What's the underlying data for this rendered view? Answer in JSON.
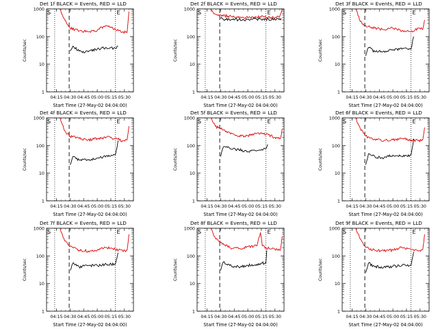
{
  "chart_data": [
    {
      "type": "line",
      "title": "Det 1f BLACK = Events, RED = LLD",
      "xlabel": "Start Time (27-May-02 04:04:00)",
      "ylabel": "Counts/sec",
      "x_tick_labels": [
        "04:15",
        "04:30",
        "04:45",
        "05:00",
        "05:15",
        "05:30"
      ],
      "y_tick_labels": [
        "1",
        "10",
        "100",
        "1000"
      ],
      "y_scale": "log",
      "ylim": [
        1,
        1000
      ],
      "corner_markers": [
        "S",
        "E"
      ],
      "vertical_lines": {
        "dotted": [
          "04:13",
          "05:20"
        ],
        "dashed": [
          "04:29"
        ]
      },
      "series": [
        {
          "color": "#000000",
          "x": [
            "04:30",
            "04:33",
            "04:40",
            "04:50",
            "05:00",
            "05:10",
            "05:20",
            "05:23"
          ],
          "y": [
            30,
            45,
            30,
            28,
            35,
            40,
            38,
            45
          ]
        },
        {
          "color": "#dd0000",
          "x": [
            "04:19",
            "04:24",
            "04:30",
            "04:40",
            "04:50",
            "05:00",
            "05:05",
            "05:12",
            "05:20",
            "05:28",
            "05:33",
            "05:35"
          ],
          "y": [
            1000,
            400,
            200,
            160,
            150,
            165,
            220,
            230,
            180,
            150,
            140,
            800
          ]
        }
      ]
    },
    {
      "type": "line",
      "title": "Det 2f BLACK = Events, RED = LLD",
      "xlabel": "Start Time (27-May-02 04:04:00)",
      "ylabel": "Counts/sec",
      "x_tick_labels": [
        "04:15",
        "04:30",
        "04:45",
        "05:00",
        "05:15",
        "05:30"
      ],
      "y_tick_labels": [
        "1",
        "10",
        "100",
        "1000"
      ],
      "y_scale": "log",
      "ylim": [
        1,
        1000
      ],
      "corner_markers": [
        "S",
        "E"
      ],
      "vertical_lines": {
        "dotted": [
          "04:13",
          "05:20"
        ],
        "dashed": [
          "04:29"
        ]
      },
      "series": [
        {
          "color": "#000000",
          "x": [
            "04:30",
            "04:35",
            "04:45",
            "05:00",
            "05:10",
            "05:15",
            "05:20",
            "05:30",
            "05:37"
          ],
          "y": [
            450,
            420,
            400,
            420,
            430,
            420,
            420,
            410,
            450
          ]
        },
        {
          "color": "#dd0000",
          "x": [
            "04:19",
            "04:24",
            "04:30",
            "04:45",
            "05:00",
            "05:10",
            "05:20",
            "05:30",
            "05:35",
            "05:38"
          ],
          "y": [
            1000,
            650,
            600,
            500,
            480,
            500,
            520,
            480,
            500,
            1000
          ]
        }
      ]
    },
    {
      "type": "line",
      "title": "Det 3f BLACK = Events, RED = LLD",
      "xlabel": "Start Time (27-May-02 04:04:00)",
      "ylabel": "Counts/sec",
      "x_tick_labels": [
        "04:15",
        "04:30",
        "04:45",
        "05:00",
        "05:15",
        "05:30"
      ],
      "y_tick_labels": [
        "1",
        "10",
        "100",
        "1000"
      ],
      "y_scale": "log",
      "ylim": [
        1,
        1000
      ],
      "corner_markers": [
        "S",
        "E"
      ],
      "vertical_lines": {
        "dotted": [
          "04:13",
          "05:20"
        ],
        "dashed": [
          "04:29"
        ]
      },
      "series": [
        {
          "color": "#000000",
          "x": [
            "04:30",
            "04:33",
            "04:40",
            "04:50",
            "05:00",
            "05:10",
            "05:20",
            "05:23"
          ],
          "y": [
            20,
            40,
            28,
            30,
            32,
            35,
            35,
            100
          ]
        },
        {
          "color": "#dd0000",
          "x": [
            "04:19",
            "04:24",
            "04:30",
            "04:40",
            "04:50",
            "05:00",
            "05:10",
            "05:20",
            "05:28",
            "05:33",
            "05:35"
          ],
          "y": [
            1000,
            350,
            250,
            200,
            180,
            200,
            160,
            150,
            200,
            180,
            400
          ]
        }
      ]
    },
    {
      "type": "line",
      "title": "Det 4f BLACK = Events, RED = LLD",
      "xlabel": "Start Time (27-May-02 04:04:00)",
      "ylabel": "Counts/sec",
      "x_tick_labels": [
        "04:15",
        "04:30",
        "04:45",
        "05:00",
        "05:15",
        "05:30"
      ],
      "y_tick_labels": [
        "1",
        "10",
        "100",
        "1000"
      ],
      "y_scale": "log",
      "ylim": [
        1,
        1000
      ],
      "corner_markers": [
        "S",
        "E"
      ],
      "vertical_lines": {
        "dotted": [
          "04:13",
          "05:20"
        ],
        "dashed": [
          "04:29"
        ]
      },
      "series": [
        {
          "color": "#000000",
          "x": [
            "04:30",
            "04:33",
            "04:40",
            "04:50",
            "05:00",
            "05:10",
            "05:20",
            "05:23"
          ],
          "y": [
            20,
            40,
            30,
            30,
            35,
            42,
            45,
            150
          ]
        },
        {
          "color": "#dd0000",
          "x": [
            "04:19",
            "04:24",
            "04:30",
            "04:40",
            "04:50",
            "05:00",
            "05:10",
            "05:20",
            "05:28",
            "05:33",
            "05:35"
          ],
          "y": [
            1000,
            350,
            220,
            180,
            160,
            180,
            200,
            180,
            150,
            160,
            500
          ]
        }
      ]
    },
    {
      "type": "line",
      "title": "Det 5f BLACK = Events, RED = LLD",
      "xlabel": "Start Time (27-May-02 04:04:00)",
      "ylabel": "Counts/sec",
      "x_tick_labels": [
        "04:15",
        "04:30",
        "04:45",
        "05:00",
        "05:15",
        "05:30"
      ],
      "y_tick_labels": [
        "1",
        "10",
        "100",
        "1000"
      ],
      "y_scale": "log",
      "ylim": [
        1,
        1000
      ],
      "corner_markers": [
        "S",
        "E"
      ],
      "vertical_lines": {
        "dotted": [
          "04:13",
          "05:20"
        ],
        "dashed": [
          "04:29"
        ]
      },
      "series": [
        {
          "color": "#000000",
          "x": [
            "04:30",
            "04:33",
            "04:40",
            "04:50",
            "05:00",
            "05:10",
            "05:20",
            "05:22"
          ],
          "y": [
            40,
            90,
            80,
            70,
            60,
            65,
            75,
            110
          ]
        },
        {
          "color": "#dd0000",
          "x": [
            "04:19",
            "04:24",
            "04:30",
            "04:40",
            "04:50",
            "05:00",
            "05:10",
            "05:20",
            "05:30",
            "05:36",
            "05:38"
          ],
          "y": [
            1000,
            500,
            400,
            300,
            220,
            230,
            280,
            250,
            200,
            180,
            400
          ]
        }
      ]
    },
    {
      "type": "line",
      "title": "Det 6f BLACK = Events, RED = LLD",
      "xlabel": "Start Time (27-May-02 04:04:00)",
      "ylabel": "Counts/sec",
      "x_tick_labels": [
        "04:15",
        "04:30",
        "04:45",
        "05:00",
        "05:15",
        "05:30"
      ],
      "y_tick_labels": [
        "1",
        "10",
        "100",
        "1000"
      ],
      "y_scale": "log",
      "ylim": [
        1,
        1000
      ],
      "corner_markers": [
        "S",
        "E"
      ],
      "vertical_lines": {
        "dotted": [
          "04:13",
          "05:20"
        ],
        "dashed": [
          "04:29"
        ]
      },
      "series": [
        {
          "color": "#000000",
          "x": [
            "04:30",
            "04:33",
            "04:40",
            "04:50",
            "05:00",
            "05:10",
            "05:20",
            "05:23"
          ],
          "y": [
            20,
            50,
            40,
            35,
            45,
            40,
            45,
            170
          ]
        },
        {
          "color": "#dd0000",
          "x": [
            "04:19",
            "04:24",
            "04:30",
            "04:40",
            "04:50",
            "05:00",
            "05:10",
            "05:20",
            "05:28",
            "05:33",
            "05:35"
          ],
          "y": [
            1000,
            400,
            220,
            170,
            150,
            160,
            180,
            160,
            150,
            160,
            450
          ]
        }
      ]
    },
    {
      "type": "line",
      "title": "Det 7f BLACK = Events, RED = LLD",
      "xlabel": "Start Time (27-May-02 04:04:00)",
      "ylabel": "Counts/sec",
      "x_tick_labels": [
        "04:15",
        "04:30",
        "04:45",
        "05:00",
        "05:15",
        "05:30"
      ],
      "y_tick_labels": [
        "1",
        "10",
        "100",
        "1000"
      ],
      "y_scale": "log",
      "ylim": [
        1,
        1000
      ],
      "corner_markers": [
        "S",
        "E"
      ],
      "vertical_lines": {
        "dotted": [
          "04:13",
          "05:20"
        ],
        "dashed": [
          "04:29"
        ]
      },
      "series": [
        {
          "color": "#000000",
          "x": [
            "04:30",
            "04:33",
            "04:40",
            "04:50",
            "05:00",
            "05:10",
            "05:20",
            "05:23"
          ],
          "y": [
            30,
            55,
            40,
            45,
            45,
            50,
            50,
            130
          ]
        },
        {
          "color": "#dd0000",
          "x": [
            "04:19",
            "04:24",
            "04:30",
            "04:40",
            "04:50",
            "05:00",
            "05:10",
            "05:20",
            "05:28",
            "05:33",
            "05:35"
          ],
          "y": [
            1000,
            350,
            220,
            160,
            150,
            160,
            200,
            170,
            150,
            160,
            600
          ]
        }
      ]
    },
    {
      "type": "line",
      "title": "Det 8f BLACK = Events, RED = LLD",
      "xlabel": "Start Time (27-May-02 04:04:00)",
      "ylabel": "Counts/sec",
      "x_tick_labels": [
        "04:15",
        "04:30",
        "04:45",
        "05:00",
        "05:15",
        "05:30"
      ],
      "y_tick_labels": [
        "1",
        "10",
        "100",
        "1000"
      ],
      "y_scale": "log",
      "ylim": [
        1,
        1000
      ],
      "corner_markers": [
        "S",
        "E"
      ],
      "vertical_lines": {
        "dotted": [
          "04:13",
          "05:20"
        ],
        "dashed": [
          "04:29"
        ]
      },
      "series": [
        {
          "color": "#000000",
          "x": [
            "04:30",
            "04:33",
            "04:40",
            "04:50",
            "05:00",
            "05:10",
            "05:15",
            "05:20",
            "05:21"
          ],
          "y": [
            30,
            60,
            45,
            40,
            45,
            50,
            55,
            55,
            160
          ]
        },
        {
          "color": "#dd0000",
          "x": [
            "04:19",
            "04:24",
            "04:30",
            "04:40",
            "04:50",
            "05:00",
            "05:10",
            "05:14",
            "05:16",
            "05:20",
            "05:30",
            "05:36",
            "05:38"
          ],
          "y": [
            1000,
            450,
            300,
            200,
            180,
            220,
            230,
            700,
            230,
            200,
            170,
            160,
            500
          ]
        }
      ]
    },
    {
      "type": "line",
      "title": "Det 9f BLACK = Events, RED = LLD",
      "xlabel": "Start Time (27-May-02 04:04:00)",
      "ylabel": "Counts/sec",
      "x_tick_labels": [
        "04:15",
        "04:30",
        "04:45",
        "05:00",
        "05:15",
        "05:30"
      ],
      "y_tick_labels": [
        "1",
        "10",
        "100",
        "1000"
      ],
      "y_scale": "log",
      "ylim": [
        1,
        1000
      ],
      "corner_markers": [
        "S",
        "E"
      ],
      "vertical_lines": {
        "dotted": [
          "04:13",
          "05:20"
        ],
        "dashed": [
          "04:29"
        ]
      },
      "series": [
        {
          "color": "#000000",
          "x": [
            "04:30",
            "04:33",
            "04:40",
            "04:50",
            "05:00",
            "05:10",
            "05:20",
            "05:23"
          ],
          "y": [
            25,
            55,
            40,
            40,
            42,
            45,
            45,
            140
          ]
        },
        {
          "color": "#dd0000",
          "x": [
            "04:19",
            "04:24",
            "04:30",
            "04:40",
            "04:50",
            "05:00",
            "05:10",
            "05:20",
            "05:28",
            "05:33",
            "05:35"
          ],
          "y": [
            1000,
            400,
            200,
            160,
            150,
            160,
            200,
            170,
            150,
            170,
            600
          ]
        }
      ]
    }
  ]
}
